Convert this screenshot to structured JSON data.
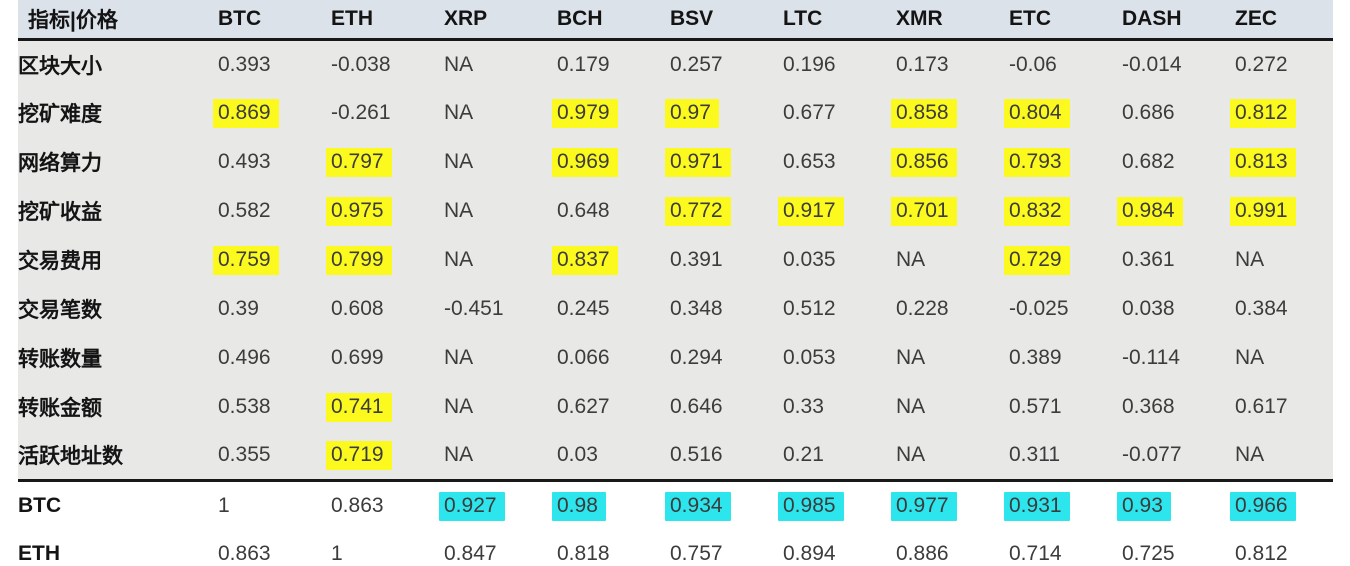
{
  "colors": {
    "highlight_yellow": "#fcf91f",
    "highlight_cyan": "#2de5ed",
    "header_bg": "#dbe2e9",
    "body_bg": "#e8e8e6",
    "rule_color": "#181818"
  },
  "table": {
    "header": [
      "指标|价格",
      "BTC",
      "ETH",
      "XRP",
      "BCH",
      "BSV",
      "LTC",
      "XMR",
      "ETC",
      "DASH",
      "ZEC"
    ],
    "rows": [
      {
        "label": "区块大小",
        "section": "indicators",
        "cells": [
          {
            "v": "0.393",
            "h": ""
          },
          {
            "v": "-0.038",
            "h": ""
          },
          {
            "v": "NA",
            "h": ""
          },
          {
            "v": "0.179",
            "h": ""
          },
          {
            "v": "0.257",
            "h": ""
          },
          {
            "v": "0.196",
            "h": ""
          },
          {
            "v": "0.173",
            "h": ""
          },
          {
            "v": "-0.06",
            "h": ""
          },
          {
            "v": "-0.014",
            "h": ""
          },
          {
            "v": "0.272",
            "h": ""
          }
        ]
      },
      {
        "label": "挖矿难度",
        "section": "indicators",
        "cells": [
          {
            "v": "0.869",
            "h": "yellow"
          },
          {
            "v": "-0.261",
            "h": ""
          },
          {
            "v": "NA",
            "h": ""
          },
          {
            "v": "0.979",
            "h": "yellow"
          },
          {
            "v": "0.97",
            "h": "yellow"
          },
          {
            "v": "0.677",
            "h": ""
          },
          {
            "v": "0.858",
            "h": "yellow"
          },
          {
            "v": "0.804",
            "h": "yellow"
          },
          {
            "v": "0.686",
            "h": ""
          },
          {
            "v": "0.812",
            "h": "yellow"
          }
        ]
      },
      {
        "label": "网络算力",
        "section": "indicators",
        "cells": [
          {
            "v": "0.493",
            "h": ""
          },
          {
            "v": "0.797",
            "h": "yellow"
          },
          {
            "v": "NA",
            "h": ""
          },
          {
            "v": "0.969",
            "h": "yellow"
          },
          {
            "v": "0.971",
            "h": "yellow"
          },
          {
            "v": "0.653",
            "h": ""
          },
          {
            "v": "0.856",
            "h": "yellow"
          },
          {
            "v": "0.793",
            "h": "yellow"
          },
          {
            "v": "0.682",
            "h": ""
          },
          {
            "v": "0.813",
            "h": "yellow"
          }
        ]
      },
      {
        "label": "挖矿收益",
        "section": "indicators",
        "cells": [
          {
            "v": "0.582",
            "h": ""
          },
          {
            "v": "0.975",
            "h": "yellow"
          },
          {
            "v": "NA",
            "h": ""
          },
          {
            "v": "0.648",
            "h": ""
          },
          {
            "v": "0.772",
            "h": "yellow"
          },
          {
            "v": "0.917",
            "h": "yellow"
          },
          {
            "v": "0.701",
            "h": "yellow"
          },
          {
            "v": "0.832",
            "h": "yellow"
          },
          {
            "v": "0.984",
            "h": "yellow"
          },
          {
            "v": "0.991",
            "h": "yellow"
          }
        ]
      },
      {
        "label": "交易费用",
        "section": "indicators",
        "cells": [
          {
            "v": "0.759",
            "h": "yellow"
          },
          {
            "v": "0.799",
            "h": "yellow"
          },
          {
            "v": "NA",
            "h": ""
          },
          {
            "v": "0.837",
            "h": "yellow"
          },
          {
            "v": "0.391",
            "h": ""
          },
          {
            "v": "0.035",
            "h": ""
          },
          {
            "v": "NA",
            "h": ""
          },
          {
            "v": "0.729",
            "h": "yellow"
          },
          {
            "v": "0.361",
            "h": ""
          },
          {
            "v": "NA",
            "h": ""
          }
        ]
      },
      {
        "label": "交易笔数",
        "section": "indicators",
        "cells": [
          {
            "v": "0.39",
            "h": ""
          },
          {
            "v": "0.608",
            "h": ""
          },
          {
            "v": "-0.451",
            "h": ""
          },
          {
            "v": "0.245",
            "h": ""
          },
          {
            "v": "0.348",
            "h": ""
          },
          {
            "v": "0.512",
            "h": ""
          },
          {
            "v": "0.228",
            "h": ""
          },
          {
            "v": "-0.025",
            "h": ""
          },
          {
            "v": "0.038",
            "h": ""
          },
          {
            "v": "0.384",
            "h": ""
          }
        ]
      },
      {
        "label": "转账数量",
        "section": "indicators",
        "cells": [
          {
            "v": "0.496",
            "h": ""
          },
          {
            "v": "0.699",
            "h": ""
          },
          {
            "v": "NA",
            "h": ""
          },
          {
            "v": "0.066",
            "h": ""
          },
          {
            "v": "0.294",
            "h": ""
          },
          {
            "v": "0.053",
            "h": ""
          },
          {
            "v": "NA",
            "h": ""
          },
          {
            "v": "0.389",
            "h": ""
          },
          {
            "v": "-0.114",
            "h": ""
          },
          {
            "v": "NA",
            "h": ""
          }
        ]
      },
      {
        "label": "转账金额",
        "section": "indicators",
        "cells": [
          {
            "v": "0.538",
            "h": ""
          },
          {
            "v": "0.741",
            "h": "yellow"
          },
          {
            "v": "NA",
            "h": ""
          },
          {
            "v": "0.627",
            "h": ""
          },
          {
            "v": "0.646",
            "h": ""
          },
          {
            "v": "0.33",
            "h": ""
          },
          {
            "v": "NA",
            "h": ""
          },
          {
            "v": "0.571",
            "h": ""
          },
          {
            "v": "0.368",
            "h": ""
          },
          {
            "v": "0.617",
            "h": ""
          }
        ]
      },
      {
        "label": "活跃地址数",
        "section": "indicators",
        "cells": [
          {
            "v": "0.355",
            "h": ""
          },
          {
            "v": "0.719",
            "h": "yellow"
          },
          {
            "v": "NA",
            "h": ""
          },
          {
            "v": "0.03",
            "h": ""
          },
          {
            "v": "0.516",
            "h": ""
          },
          {
            "v": "0.21",
            "h": ""
          },
          {
            "v": "NA",
            "h": ""
          },
          {
            "v": "0.311",
            "h": ""
          },
          {
            "v": "-0.077",
            "h": ""
          },
          {
            "v": "NA",
            "h": ""
          }
        ]
      },
      {
        "label": "BTC",
        "section": "coins",
        "cells": [
          {
            "v": "1",
            "h": ""
          },
          {
            "v": "0.863",
            "h": ""
          },
          {
            "v": "0.927",
            "h": "cyan"
          },
          {
            "v": "0.98",
            "h": "cyan"
          },
          {
            "v": "0.934",
            "h": "cyan"
          },
          {
            "v": "0.985",
            "h": "cyan"
          },
          {
            "v": "0.977",
            "h": "cyan"
          },
          {
            "v": "0.931",
            "h": "cyan"
          },
          {
            "v": "0.93",
            "h": "cyan"
          },
          {
            "v": "0.966",
            "h": "cyan"
          }
        ]
      },
      {
        "label": "ETH",
        "section": "coins",
        "cells": [
          {
            "v": "0.863",
            "h": ""
          },
          {
            "v": "1",
            "h": ""
          },
          {
            "v": "0.847",
            "h": ""
          },
          {
            "v": "0.818",
            "h": ""
          },
          {
            "v": "0.757",
            "h": ""
          },
          {
            "v": "0.894",
            "h": ""
          },
          {
            "v": "0.886",
            "h": ""
          },
          {
            "v": "0.714",
            "h": ""
          },
          {
            "v": "0.725",
            "h": ""
          },
          {
            "v": "0.812",
            "h": ""
          }
        ]
      }
    ]
  },
  "chart_data": {
    "type": "table",
    "title": "指标|价格 相关系数表",
    "columns": [
      "指标|价格",
      "BTC",
      "ETH",
      "XRP",
      "BCH",
      "BSV",
      "LTC",
      "XMR",
      "ETC",
      "DASH",
      "ZEC"
    ],
    "rows": [
      {
        "label": "区块大小",
        "values": [
          0.393,
          -0.038,
          "NA",
          0.179,
          0.257,
          0.196,
          0.173,
          -0.06,
          -0.014,
          0.272
        ]
      },
      {
        "label": "挖矿难度",
        "values": [
          0.869,
          -0.261,
          "NA",
          0.979,
          0.97,
          0.677,
          0.858,
          0.804,
          0.686,
          0.812
        ]
      },
      {
        "label": "网络算力",
        "values": [
          0.493,
          0.797,
          "NA",
          0.969,
          0.971,
          0.653,
          0.856,
          0.793,
          0.682,
          0.813
        ]
      },
      {
        "label": "挖矿收益",
        "values": [
          0.582,
          0.975,
          "NA",
          0.648,
          0.772,
          0.917,
          0.701,
          0.832,
          0.984,
          0.991
        ]
      },
      {
        "label": "交易费用",
        "values": [
          0.759,
          0.799,
          "NA",
          0.837,
          0.391,
          0.035,
          "NA",
          0.729,
          0.361,
          "NA"
        ]
      },
      {
        "label": "交易笔数",
        "values": [
          0.39,
          0.608,
          -0.451,
          0.245,
          0.348,
          0.512,
          0.228,
          -0.025,
          0.038,
          0.384
        ]
      },
      {
        "label": "转账数量",
        "values": [
          0.496,
          0.699,
          "NA",
          0.066,
          0.294,
          0.053,
          "NA",
          0.389,
          -0.114,
          "NA"
        ]
      },
      {
        "label": "转账金额",
        "values": [
          0.538,
          0.741,
          "NA",
          0.627,
          0.646,
          0.33,
          "NA",
          0.571,
          0.368,
          0.617
        ]
      },
      {
        "label": "活跃地址数",
        "values": [
          0.355,
          0.719,
          "NA",
          0.03,
          0.516,
          0.21,
          "NA",
          0.311,
          -0.077,
          "NA"
        ]
      },
      {
        "label": "BTC",
        "values": [
          1,
          0.863,
          0.927,
          0.98,
          0.934,
          0.985,
          0.977,
          0.931,
          0.93,
          0.966
        ]
      },
      {
        "label": "ETH",
        "values": [
          0.863,
          1,
          0.847,
          0.818,
          0.757,
          0.894,
          0.886,
          0.714,
          0.725,
          0.812
        ]
      }
    ],
    "highlights": {
      "yellow_cells": "strong indicator-price correlations highlighted in 挖矿难度/网络算力/挖矿收益/交易费用/转账金额/活跃地址数 rows",
      "cyan_cells": "BTC row price correlations vs XRP, BCH, BSV, LTC, XMR, ETC, DASH, ZEC"
    },
    "layout": {
      "header_separator": "thick black rule",
      "section_separator_after_row": "活跃地址数",
      "grid": false
    }
  }
}
